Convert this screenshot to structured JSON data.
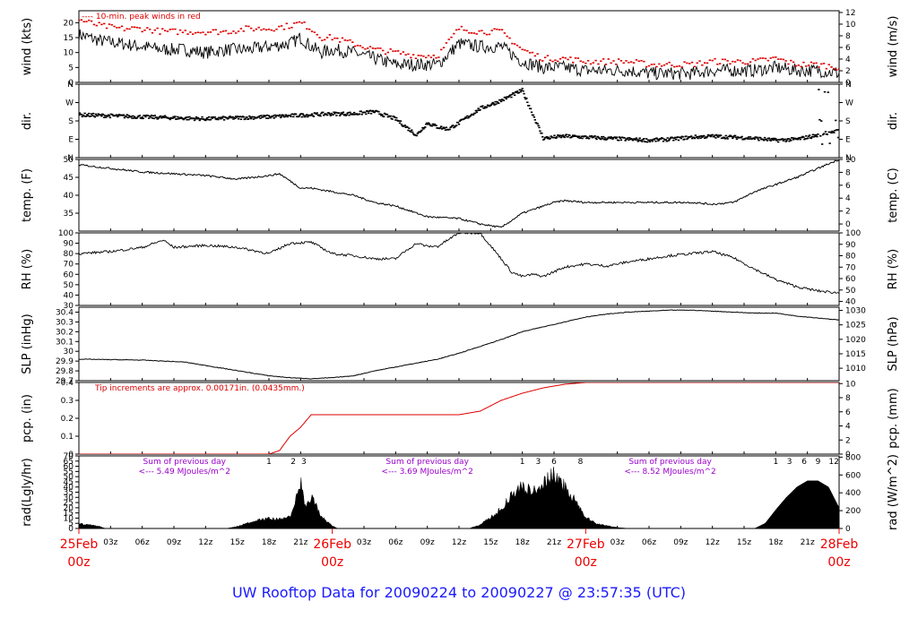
{
  "footer": {
    "title": "UW Rooftop Data for 20090224  to  20090227 @ 23:57:35  (UTC)"
  },
  "chart_data": {
    "type": "line",
    "x_hours_range": [
      0,
      72
    ],
    "panels": [
      {
        "key": "wind",
        "ylabel_left": "wind (kts)",
        "ylabel_right": "wind (m/s)",
        "yrange": [
          0,
          24
        ],
        "left_ticks": [
          0,
          5,
          10,
          15,
          20
        ],
        "right_ticks": [
          0,
          2,
          4,
          6,
          8,
          10,
          12
        ],
        "right_range": [
          0,
          12.3
        ],
        "annotation": "---- 10-min. peak winds in red",
        "series": [
          {
            "style": "line",
            "color": "#000000",
            "noise": 2.2,
            "x": [
              0,
              2,
              4,
              6,
              8,
              10,
              12,
              14,
              16,
              18,
              20,
              21,
              22,
              23,
              24,
              26,
              28,
              30,
              32,
              34,
              36,
              38,
              40,
              42,
              44,
              46,
              48,
              50,
              52,
              54,
              56,
              58,
              60,
              62,
              64,
              66,
              68,
              70,
              72
            ],
            "y": [
              16,
              14,
              13,
              12,
              11,
              11,
              10,
              11,
              11,
              12,
              13,
              15,
              12,
              10,
              11,
              10,
              8,
              6,
              6,
              6,
              13,
              12,
              12,
              7,
              5,
              5,
              4,
              4,
              4,
              3,
              3,
              3,
              4,
              4,
              4,
              5,
              4,
              4,
              3
            ]
          },
          {
            "style": "dots",
            "color": "#dd0000",
            "noise": 1.0,
            "x": [
              0,
              2,
              4,
              6,
              8,
              10,
              12,
              14,
              16,
              18,
              20,
              21,
              22,
              23,
              24,
              26,
              28,
              30,
              32,
              34,
              36,
              38,
              40,
              42,
              44,
              46,
              48,
              50,
              52,
              54,
              56,
              58,
              60,
              62,
              64,
              66,
              68,
              70,
              72
            ],
            "y": [
              21,
              19,
              18,
              18,
              17,
              17,
              17,
              17,
              18,
              18,
              19,
              20,
              18,
              15,
              15,
              13,
              11,
              10,
              9,
              9,
              18,
              17,
              17,
              11,
              8,
              8,
              7,
              7,
              7,
              6,
              6,
              6,
              7,
              7,
              7,
              8,
              6,
              6,
              5
            ]
          }
        ]
      },
      {
        "key": "dir",
        "ylabel_left": "dir.",
        "ylabel_right": "dir.",
        "yrange": [
          0,
          360
        ],
        "left_ticks": [
          0,
          90,
          180,
          270,
          360
        ],
        "left_tick_labels": [
          "N",
          "E",
          "S",
          "W",
          "N"
        ],
        "right_ticks": [
          0,
          90,
          180,
          270,
          360
        ],
        "right_tick_labels": [
          "N",
          "E",
          "S",
          "W",
          "N"
        ],
        "right_range": [
          0,
          360
        ],
        "series": [
          {
            "style": "dots",
            "color": "#000000",
            "noise": 9,
            "x": [
              0,
              3,
              6,
              9,
              12,
              15,
              18,
              20,
              22,
              24,
              26,
              28,
              30,
              31,
              32,
              33,
              34,
              35,
              36,
              38,
              40,
              41,
              42,
              44,
              46,
              48,
              50,
              52,
              54,
              56,
              58,
              60,
              62,
              64,
              66,
              68,
              70,
              71,
              72
            ],
            "y": [
              210,
              205,
              200,
              195,
              190,
              195,
              200,
              205,
              210,
              215,
              215,
              225,
              190,
              150,
              110,
              170,
              150,
              140,
              170,
              240,
              280,
              305,
              330,
              95,
              105,
              100,
              95,
              90,
              85,
              90,
              100,
              105,
              100,
              95,
              85,
              90,
              110,
              120,
              130
            ]
          }
        ]
      },
      {
        "key": "temp",
        "ylabel_left": "temp. (F)",
        "ylabel_right": "temp. (C)",
        "yrange": [
          30,
          50
        ],
        "left_ticks": [
          35,
          40,
          45,
          50
        ],
        "right_ticks": [
          0,
          2,
          4,
          6,
          8,
          10
        ],
        "right_range": [
          -1.1,
          10
        ],
        "series": [
          {
            "style": "line",
            "color": "#000000",
            "noise": 0.25,
            "x": [
              0,
              3,
              6,
              9,
              12,
              15,
              18,
              19,
              20,
              21,
              22,
              24,
              26,
              28,
              30,
              33,
              36,
              38,
              40,
              42,
              44,
              45,
              46,
              48,
              50,
              52,
              54,
              56,
              58,
              60,
              62,
              64,
              66,
              68,
              70,
              72
            ],
            "y": [
              48.5,
              47.5,
              46.5,
              46,
              45.5,
              44.5,
              45.5,
              46,
              44,
              42,
              42,
              41,
              40,
              38,
              37,
              34,
              33.5,
              32,
              31,
              35,
              37,
              38,
              38.5,
              38,
              38,
              38,
              38,
              38,
              38,
              37.5,
              38,
              41,
              43,
              45,
              47.5,
              50
            ]
          }
        ]
      },
      {
        "key": "rh",
        "ylabel_left": "RH (%)",
        "ylabel_right": "RH (%)",
        "yrange": [
          30,
          100
        ],
        "left_ticks": [
          30,
          40,
          50,
          60,
          70,
          80,
          90,
          100
        ],
        "right_ticks": [
          40,
          50,
          60,
          70,
          80,
          90,
          100
        ],
        "right_range": [
          36.5,
          100
        ],
        "series": [
          {
            "style": "line",
            "color": "#000000",
            "noise": 1.2,
            "x": [
              0,
              3,
              6,
              8,
              9,
              12,
              15,
              18,
              20,
              22,
              24,
              26,
              28,
              30,
              31,
              32,
              33,
              34,
              36,
              38,
              40,
              41,
              42,
              43,
              44,
              46,
              48,
              50,
              52,
              54,
              56,
              58,
              60,
              62,
              64,
              66,
              68,
              70,
              72
            ],
            "y": [
              80,
              82,
              86,
              93,
              86,
              88,
              86,
              80,
              90,
              91,
              80,
              78,
              75,
              75,
              83,
              90,
              87,
              87,
              100,
              100,
              75,
              62,
              58,
              60,
              58,
              67,
              70,
              68,
              72,
              75,
              78,
              80,
              82,
              76,
              65,
              55,
              48,
              44,
              42
            ]
          }
        ]
      },
      {
        "key": "slp",
        "ylabel_left": "SLP (inHg)",
        "ylabel_right": "SLP (hPa)",
        "yrange": [
          29.7,
          30.45
        ],
        "left_ticks": [
          29.7,
          29.8,
          29.9,
          30.0,
          30.1,
          30.2,
          30.3,
          30.4
        ],
        "right_ticks": [
          1010,
          1015,
          1020,
          1025,
          1030
        ],
        "right_range": [
          1005.7,
          1031.1
        ],
        "series": [
          {
            "style": "line",
            "color": "#000000",
            "noise": 0.003,
            "x": [
              0,
              6,
              10,
              14,
              18,
              20,
              22,
              24,
              26,
              28,
              30,
              32,
              34,
              36,
              38,
              40,
              42,
              44,
              46,
              48,
              50,
              52,
              54,
              56,
              58,
              60,
              62,
              64,
              66,
              68,
              70,
              72
            ],
            "y": [
              29.92,
              29.91,
              29.89,
              29.82,
              29.75,
              29.73,
              29.72,
              29.73,
              29.75,
              29.8,
              29.84,
              29.88,
              29.92,
              29.98,
              30.05,
              30.12,
              30.2,
              30.25,
              30.3,
              30.35,
              30.38,
              30.4,
              30.41,
              30.42,
              30.42,
              30.41,
              30.4,
              30.39,
              30.39,
              30.36,
              30.34,
              30.32
            ]
          }
        ]
      },
      {
        "key": "pcp",
        "ylabel_left": "pcp. (in)",
        "ylabel_right": "pcp. (mm)",
        "yrange": [
          0,
          0.4
        ],
        "left_ticks": [
          0.0,
          0.1,
          0.2,
          0.3,
          0.4
        ],
        "right_ticks": [
          0,
          2,
          4,
          6,
          8,
          10
        ],
        "right_range": [
          0,
          10.16
        ],
        "annotation": "Tip increments are approx. 0.00171in. (0.0435mm.)",
        "series": [
          {
            "style": "step",
            "color": "#dd0000",
            "noise": 0,
            "x": [
              0,
              18,
              19,
              20,
              21,
              22,
              24,
              30,
              36,
              38,
              40,
              42,
              44,
              45,
              46,
              48,
              72
            ],
            "y": [
              0,
              0,
              0.02,
              0.1,
              0.15,
              0.22,
              0.22,
              0.22,
              0.22,
              0.24,
              0.3,
              0.34,
              0.37,
              0.38,
              0.39,
              0.4,
              0.4
            ]
          }
        ]
      },
      {
        "key": "rad",
        "ylabel_left": "rad(Lgly/hr)",
        "ylabel_right": "rad (W/m^2)",
        "yrange": [
          0,
          70
        ],
        "left_ticks": [
          0,
          5,
          10,
          15,
          20,
          25,
          30,
          35,
          40,
          45,
          50,
          55,
          60,
          65,
          70
        ],
        "right_ticks": [
          0,
          200,
          400,
          600,
          800
        ],
        "right_range": [
          0,
          813.7
        ],
        "daily_sums": [
          {
            "line1": "Sum of previous day",
            "line2": "<--- 5.49 MJoules/m^2",
            "x_hour": 10
          },
          {
            "line1": "Sum of previous day",
            "line2": "<--- 3.69 MJoules/m^2",
            "x_hour": 33
          },
          {
            "line1": "Sum of previous day",
            "line2": "<--- 8.52 MJoules/m^2",
            "x_hour": 56
          }
        ],
        "hour_marks": [
          {
            "label": "1",
            "x_hour": 18
          },
          {
            "label": "2",
            "x_hour": 20.3
          },
          {
            "label": "3",
            "x_hour": 21.3
          },
          {
            "label": "1",
            "x_hour": 42
          },
          {
            "label": "3",
            "x_hour": 43.5
          },
          {
            "label": "6",
            "x_hour": 45
          },
          {
            "label": "8",
            "x_hour": 47.5
          },
          {
            "label": "1",
            "x_hour": 66
          },
          {
            "label": "3",
            "x_hour": 67.3
          },
          {
            "label": "6",
            "x_hour": 68.7
          },
          {
            "label": "9",
            "x_hour": 70
          },
          {
            "label": "12",
            "x_hour": 71.5
          }
        ],
        "series": [
          {
            "style": "area",
            "color": "#000000",
            "noise": 0,
            "x": [
              0,
              0.5,
              1,
              1.5,
              2,
              2.5,
              14,
              15,
              16,
              17,
              18,
              19,
              20,
              20.5,
              21,
              21.5,
              22,
              23,
              24,
              24.5,
              37,
              38,
              39,
              40,
              41,
              42,
              43,
              44,
              45,
              46,
              47,
              48,
              49,
              50,
              51,
              52,
              64,
              65,
              66,
              67,
              68,
              69,
              70,
              71,
              72
            ],
            "y": [
              6,
              4,
              4,
              3,
              2,
              0,
              0,
              2,
              6,
              9,
              11,
              10,
              12,
              30,
              50,
              20,
              35,
              12,
              3,
              0,
              0,
              4,
              12,
              22,
              35,
              45,
              40,
              48,
              60,
              45,
              30,
              12,
              5,
              3,
              1,
              0,
              0,
              5,
              18,
              30,
              40,
              46,
              46,
              40,
              20
            ]
          }
        ]
      }
    ],
    "x_axis": {
      "hour_labels": [
        "03z",
        "06z",
        "09z",
        "12z",
        "15z",
        "18z",
        "21z",
        "03z",
        "06z",
        "09z",
        "12z",
        "15z",
        "18z",
        "21z",
        "03z",
        "06z",
        "09z",
        "12z",
        "15z",
        "18z",
        "21z"
      ],
      "hour_positions": [
        3,
        6,
        9,
        12,
        15,
        18,
        21,
        27,
        30,
        33,
        36,
        39,
        42,
        45,
        51,
        54,
        57,
        60,
        63,
        66,
        69
      ],
      "day_labels": [
        {
          "date": "25Feb",
          "time": "00z",
          "x_hour": 0
        },
        {
          "date": "26Feb",
          "time": "00z",
          "x_hour": 24
        },
        {
          "date": "27Feb",
          "time": "00z",
          "x_hour": 48
        },
        {
          "date": "28Feb",
          "time": "00z",
          "x_hour": 72
        }
      ]
    }
  }
}
